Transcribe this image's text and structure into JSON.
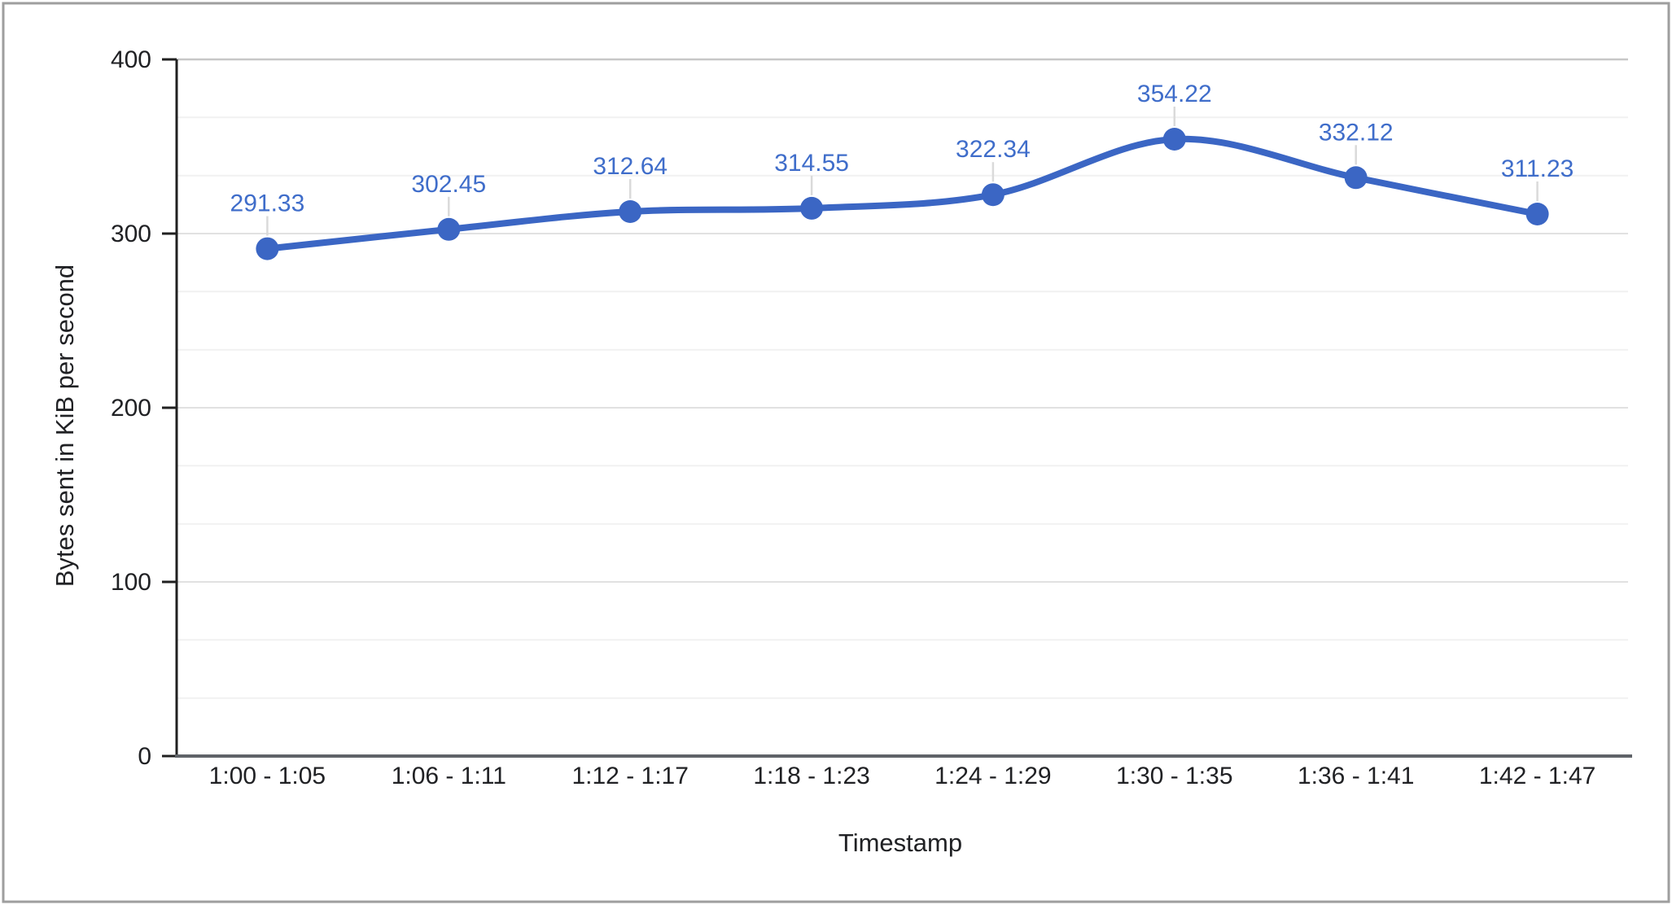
{
  "frame": {
    "border_color": "#9e9e9e",
    "background": "#ffffff"
  },
  "chart_data": {
    "type": "line",
    "smooth": true,
    "title": "",
    "xlabel": "Timestamp",
    "ylabel": "Bytes sent in KiB per second",
    "categories": [
      "1:00 - 1:05",
      "1:06 - 1:11",
      "1:12 - 1:17",
      "1:18 - 1:23",
      "1:24 - 1:29",
      "1:30 - 1:35",
      "1:36 - 1:41",
      "1:42 - 1:47"
    ],
    "values": [
      291.33,
      302.45,
      312.64,
      314.55,
      322.34,
      354.22,
      332.12,
      311.23
    ],
    "data_labels": [
      "291.33",
      "302.45",
      "312.64",
      "314.55",
      "322.34",
      "354.22",
      "332.12",
      "311.23"
    ],
    "y_ticks": [
      0,
      100,
      200,
      300,
      400
    ],
    "ylim": [
      0,
      400
    ],
    "minor_gridlines_between_majors": 2,
    "grid": true,
    "legend_position": "none",
    "colors": {
      "series": "#3b66c4",
      "marker": "#3b66c4",
      "data_label": "#3f6dca",
      "axis_text": "#202124",
      "axis_line": "#212121",
      "baseline": "#5f6368",
      "gridline_top": "#c7c7c7",
      "gridline_major": "#e1e1e1",
      "gridline_minor": "#f1f1f1",
      "leader_line": "#dadada"
    }
  }
}
